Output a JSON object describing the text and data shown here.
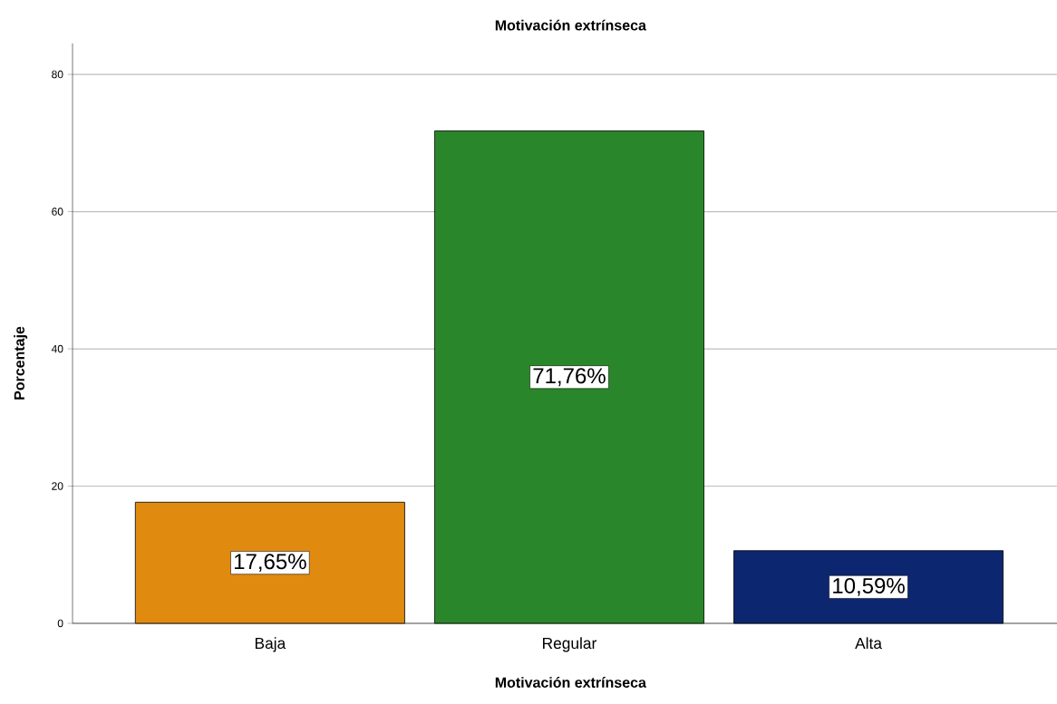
{
  "chart_data": {
    "type": "bar",
    "title": "Motivación extrínseca",
    "xlabel": "Motivación extrínseca",
    "ylabel": "Porcentaje",
    "categories": [
      "Baja",
      "Regular",
      "Alta"
    ],
    "values": [
      17.65,
      71.76,
      10.59
    ],
    "colors": [
      "#e08a10",
      "#2a862a",
      "#0c2670"
    ],
    "value_labels": [
      "17,65%",
      "71,76%",
      "10,59%"
    ],
    "ylim": [
      0,
      84.5
    ],
    "yticks": [
      0,
      20,
      40,
      60,
      80
    ],
    "grid": "y"
  }
}
